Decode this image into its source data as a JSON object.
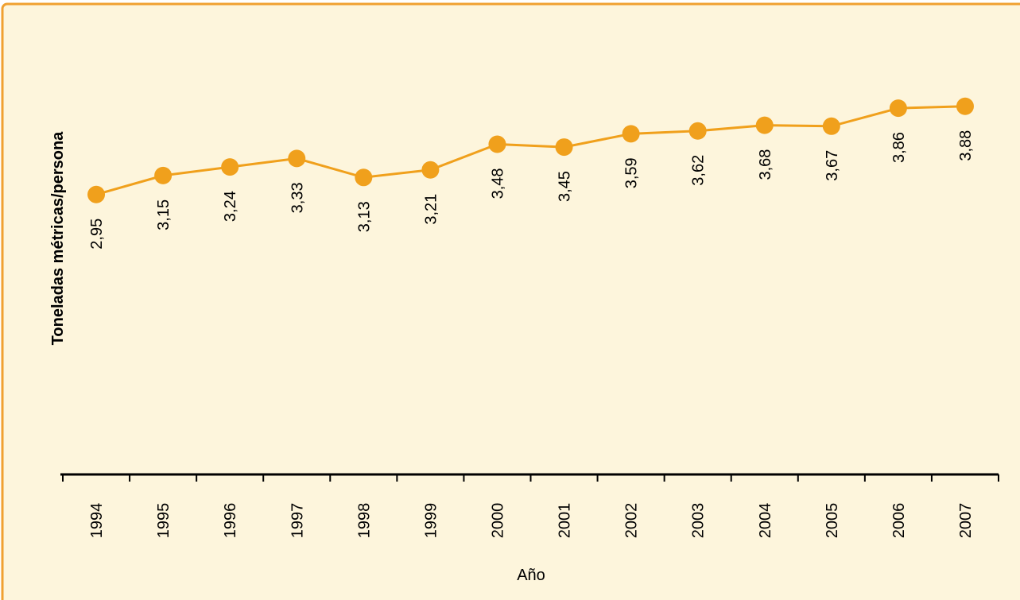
{
  "chart_data": {
    "type": "line",
    "x_label": "Año",
    "y_label": "Toneladas métricas/persona",
    "categories": [
      "1994",
      "1995",
      "1996",
      "1997",
      "1998",
      "1999",
      "2000",
      "2001",
      "2002",
      "2003",
      "2004",
      "2005",
      "2006",
      "2007"
    ],
    "series": [
      {
        "color": "#f0a01c",
        "values": [
          2.95,
          3.15,
          3.24,
          3.33,
          3.13,
          3.21,
          3.48,
          3.45,
          3.59,
          3.62,
          3.68,
          3.67,
          3.86,
          3.88
        ],
        "value_labels": [
          "2,95",
          "3,15",
          "3,24",
          "3,33",
          "3,13",
          "3,21",
          "3,48",
          "3,45",
          "3,59",
          "3,62",
          "3,68",
          "3,67",
          "3,86",
          "3,88"
        ]
      }
    ],
    "ylim": [
      0,
      5
    ]
  }
}
